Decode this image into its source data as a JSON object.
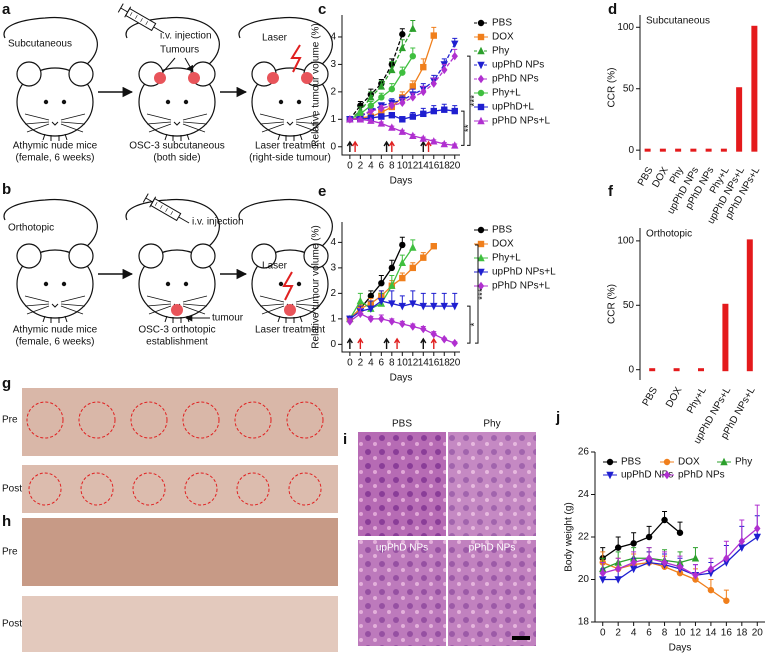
{
  "panel_labels": [
    "a",
    "b",
    "c",
    "d",
    "e",
    "f",
    "g",
    "h",
    "i",
    "j"
  ],
  "diagram_a": {
    "title": "Subcutaneous",
    "injection": "i.v. injection",
    "tumours": "Tumours",
    "laser": "Laser",
    "captions": [
      [
        "Athymic nude mice",
        "(female, 6 weeks)"
      ],
      [
        "OSC-3 subcutaneous",
        "(both side)"
      ],
      [
        "Laser treatment",
        "(right-side tumour)"
      ]
    ]
  },
  "diagram_b": {
    "title": "Orthotopic",
    "injection": "i.v. injection",
    "tumour": "tumour",
    "laser": "Laser",
    "captions": [
      [
        "Athymic nude mice",
        "(female, 6 weeks)"
      ],
      [
        "OSC-3 orthotopic",
        "establishment"
      ],
      [
        "Laser treatment"
      ]
    ]
  },
  "photos_g": {
    "rows": [
      "Pre",
      "Post"
    ]
  },
  "photos_h": {
    "rows": [
      "Pre",
      "Post"
    ]
  },
  "histology_i": {
    "labels": [
      "PBS",
      "Phy",
      "upPhD NPs",
      "pPhD NPs"
    ]
  },
  "chart_data": [
    {
      "type": "line",
      "ylabel": "Relative tumour volume (%)",
      "xlabel": "Days",
      "x": [
        0,
        2,
        4,
        6,
        8,
        10,
        12,
        14,
        16,
        18,
        20
      ],
      "xlim": [
        -1.5,
        21
      ],
      "xticks": [
        0,
        2,
        4,
        6,
        8,
        10,
        12,
        14,
        16,
        18,
        20
      ],
      "ylim": [
        -0.3,
        4.8
      ],
      "yticks": [
        0,
        1,
        2,
        3,
        4
      ],
      "legend": "right",
      "injection_days": [
        0,
        7,
        14
      ],
      "laser_days": [
        1,
        8,
        15
      ],
      "annotations": [
        {
          "text": "***"
        },
        {
          "text": "**"
        }
      ],
      "series": [
        {
          "name": "PBS",
          "color": "#000000",
          "marker": "circle",
          "dashed": true,
          "values": [
            1.0,
            1.5,
            1.9,
            2.3,
            3.0,
            4.1,
            null,
            null,
            null,
            null,
            null
          ],
          "errors": [
            0.05,
            0.15,
            0.2,
            0.15,
            0.2,
            0.2,
            null,
            null,
            null,
            null,
            null
          ]
        },
        {
          "name": "DOX",
          "color": "#f07f1c",
          "marker": "square",
          "dashed": false,
          "values": [
            1.0,
            1.05,
            1.1,
            1.25,
            1.45,
            1.8,
            2.2,
            2.9,
            4.05,
            null,
            null
          ],
          "errors": [
            0.05,
            0.1,
            0.1,
            0.15,
            0.15,
            0.2,
            0.2,
            0.3,
            0.3,
            null,
            null
          ]
        },
        {
          "name": "Phy",
          "color": "#2ca02c",
          "marker": "triangle",
          "dashed": true,
          "values": [
            1.0,
            1.3,
            1.8,
            2.2,
            2.8,
            3.6,
            4.3,
            null,
            null,
            null,
            null
          ],
          "errors": [
            0.1,
            0.15,
            0.2,
            0.2,
            0.3,
            0.3,
            0.3,
            null,
            null,
            null,
            null
          ]
        },
        {
          "name": "upPhD NPs",
          "color": "#1f1fd0",
          "marker": "triangle-down",
          "dashed": true,
          "values": [
            1.0,
            1.1,
            1.3,
            1.5,
            1.6,
            1.7,
            1.9,
            2.1,
            2.4,
            3.0,
            3.75
          ],
          "errors": [
            0.05,
            0.1,
            0.1,
            0.1,
            0.15,
            0.15,
            0.2,
            0.2,
            0.2,
            0.2,
            0.2
          ]
        },
        {
          "name": "pPhD NPs",
          "color": "#b030d0",
          "marker": "diamond",
          "dashed": true,
          "values": [
            1.0,
            1.15,
            1.3,
            1.4,
            1.5,
            1.6,
            1.8,
            2.0,
            2.3,
            2.8,
            3.3
          ],
          "errors": [
            0.05,
            0.1,
            0.1,
            0.1,
            0.1,
            0.15,
            0.15,
            0.2,
            0.2,
            0.2,
            0.25
          ]
        },
        {
          "name": "Phy+L",
          "color": "#3fbf3f",
          "marker": "circle",
          "dashed": false,
          "values": [
            1.0,
            1.2,
            1.5,
            1.8,
            2.1,
            2.7,
            3.3,
            null,
            null,
            null,
            null
          ],
          "errors": [
            0.05,
            0.1,
            0.15,
            0.15,
            0.2,
            0.2,
            0.3,
            null,
            null,
            null,
            null
          ]
        },
        {
          "name": "upPhD+L",
          "color": "#1f1fd0",
          "marker": "square",
          "dashed": false,
          "values": [
            1.0,
            1.0,
            1.05,
            1.1,
            1.15,
            1.0,
            1.1,
            1.2,
            1.3,
            1.35,
            1.3
          ],
          "errors": [
            0.05,
            0.1,
            0.1,
            0.1,
            0.1,
            0.1,
            0.15,
            0.2,
            0.2,
            0.2,
            0.2
          ]
        },
        {
          "name": "pPhD NPs+L",
          "color": "#b030d0",
          "marker": "triangle",
          "dashed": false,
          "values": [
            1.0,
            1.0,
            0.95,
            0.85,
            0.7,
            0.55,
            0.4,
            0.3,
            0.2,
            0.1,
            0.05
          ],
          "errors": [
            0.05,
            0.05,
            0.05,
            0.05,
            0.05,
            0.05,
            0.05,
            0.05,
            0.05,
            0.05,
            0.05
          ]
        }
      ]
    },
    {
      "type": "bar",
      "ylabel": "CCR (%)",
      "label": "Subcutaneous",
      "color": "#e41a1c",
      "categories": [
        "PBS",
        "DOX",
        "Phy",
        "upPhD NPs",
        "pPhD NPs",
        "Phy+L",
        "upPhD NPs+L",
        "pPhD NPs+L"
      ],
      "values": [
        0,
        0,
        0,
        0,
        0,
        0,
        50,
        100
      ],
      "ylim": [
        -8,
        110
      ],
      "yticks": [
        0,
        50,
        100
      ]
    },
    {
      "type": "line",
      "ylabel": "Relative tumour volume (%)",
      "xlabel": "Days",
      "x": [
        0,
        2,
        4,
        6,
        8,
        10,
        12,
        14,
        16,
        18,
        20
      ],
      "xlim": [
        -1.5,
        21
      ],
      "xticks": [
        0,
        2,
        4,
        6,
        8,
        10,
        12,
        14,
        16,
        18,
        20
      ],
      "ylim": [
        -0.3,
        4.8
      ],
      "yticks": [
        0,
        1,
        2,
        3,
        4
      ],
      "legend": "right",
      "injection_days": [
        0,
        7,
        14
      ],
      "laser_days": [
        2,
        9,
        16
      ],
      "annotations": [
        {
          "text": "***"
        },
        {
          "text": "*"
        }
      ],
      "series": [
        {
          "name": "PBS",
          "color": "#000000",
          "marker": "circle",
          "dashed": false,
          "values": [
            1.0,
            1.4,
            1.9,
            2.4,
            3.0,
            3.9,
            null,
            null,
            null,
            null,
            null
          ],
          "errors": [
            0.1,
            0.2,
            0.2,
            0.3,
            0.3,
            0.3,
            null,
            null,
            null,
            null,
            null
          ]
        },
        {
          "name": "DOX",
          "color": "#f07f1c",
          "marker": "square",
          "dashed": false,
          "values": [
            1.0,
            1.4,
            1.6,
            1.9,
            2.3,
            2.6,
            3.0,
            3.4,
            3.85,
            null,
            null
          ],
          "errors": [
            0.1,
            0.15,
            0.2,
            0.2,
            0.2,
            0.2,
            0.2,
            0.2,
            0.1,
            null,
            null
          ]
        },
        {
          "name": "Phy+L",
          "color": "#3fbf3f",
          "marker": "triangle",
          "dashed": false,
          "values": [
            1.0,
            1.7,
            1.4,
            1.6,
            2.3,
            3.2,
            3.8,
            null,
            null,
            null,
            null
          ],
          "errors": [
            0.1,
            0.3,
            0.3,
            0.4,
            0.4,
            0.3,
            0.3,
            null,
            null,
            null,
            null
          ]
        },
        {
          "name": "upPhD NPs+L",
          "color": "#1f1fd0",
          "marker": "triangle-down",
          "dashed": false,
          "values": [
            1.0,
            1.3,
            1.4,
            1.7,
            1.6,
            1.5,
            1.6,
            1.5,
            1.5,
            1.5,
            1.5
          ],
          "errors": [
            0.1,
            0.2,
            0.3,
            0.4,
            0.5,
            0.4,
            0.5,
            0.5,
            0.5,
            0.5,
            0.5
          ]
        },
        {
          "name": "pPhD NPs+L",
          "color": "#b030d0",
          "marker": "diamond",
          "dashed": false,
          "values": [
            0.9,
            1.2,
            1.0,
            1.0,
            0.9,
            0.8,
            0.7,
            0.6,
            0.4,
            0.2,
            0.05
          ],
          "errors": [
            0.1,
            0.2,
            0.1,
            0.15,
            0.1,
            0.1,
            0.1,
            0.1,
            0.1,
            0.05,
            0.05
          ]
        }
      ]
    },
    {
      "type": "bar",
      "ylabel": "CCR (%)",
      "label": "Orthotopic",
      "color": "#e41a1c",
      "categories": [
        "PBS",
        "DOX",
        "Phy+L",
        "upPhD NPs+L",
        "pPhD NPs+L"
      ],
      "values": [
        0,
        0,
        0,
        50,
        100
      ],
      "ylim": [
        -8,
        110
      ],
      "yticks": [
        0,
        50,
        100
      ]
    },
    {
      "type": "line",
      "ylabel": "Body weight (g)",
      "xlabel": "Days",
      "x": [
        0,
        2,
        4,
        6,
        8,
        10,
        12,
        14,
        16,
        18,
        20
      ],
      "xlim": [
        -1,
        21
      ],
      "xticks": [
        0,
        2,
        4,
        6,
        8,
        10,
        12,
        14,
        16,
        18,
        20
      ],
      "ylim": [
        18,
        26
      ],
      "yticks": [
        18,
        20,
        22,
        24,
        26
      ],
      "legend": "upper",
      "series": [
        {
          "name": "PBS",
          "color": "#000000",
          "marker": "circle",
          "dashed": false,
          "values": [
            21.0,
            21.5,
            21.7,
            22.0,
            22.8,
            22.2,
            null,
            null,
            null,
            null,
            null
          ],
          "errors": [
            0.5,
            0.5,
            0.5,
            0.5,
            0.4,
            0.5,
            null,
            null,
            null,
            null,
            null
          ]
        },
        {
          "name": "DOX",
          "color": "#f07f1c",
          "marker": "circle",
          "dashed": false,
          "values": [
            20.8,
            20.5,
            20.7,
            20.8,
            20.6,
            20.3,
            20.0,
            19.5,
            19.0,
            null,
            null
          ],
          "errors": [
            0.5,
            0.5,
            0.5,
            0.5,
            0.5,
            0.5,
            0.5,
            0.5,
            0.5,
            null,
            null
          ]
        },
        {
          "name": "Phy",
          "color": "#2ca02c",
          "marker": "triangle",
          "dashed": false,
          "values": [
            20.5,
            20.8,
            21.0,
            21.0,
            20.9,
            20.8,
            21.0,
            null,
            null,
            null,
            null
          ],
          "errors": [
            0.5,
            0.5,
            0.5,
            0.5,
            0.5,
            0.5,
            0.5,
            null,
            null,
            null,
            null
          ]
        },
        {
          "name": "upPhD NPs",
          "color": "#1f1fd0",
          "marker": "triangle-down",
          "dashed": false,
          "values": [
            20.0,
            20.0,
            20.5,
            20.8,
            20.7,
            20.5,
            20.2,
            20.3,
            20.8,
            21.5,
            22.0
          ],
          "errors": [
            0.5,
            0.5,
            0.5,
            0.5,
            0.5,
            0.5,
            0.5,
            0.5,
            0.8,
            1.0,
            1.0
          ]
        },
        {
          "name": "pPhD NPs",
          "color": "#b030d0",
          "marker": "diamond",
          "dashed": false,
          "values": [
            20.3,
            20.5,
            20.8,
            21.0,
            20.8,
            20.6,
            20.2,
            20.5,
            21.0,
            21.8,
            22.4
          ],
          "errors": [
            0.5,
            0.5,
            0.5,
            0.5,
            0.5,
            0.5,
            0.5,
            0.5,
            0.8,
            1.0,
            1.1
          ]
        }
      ]
    }
  ]
}
